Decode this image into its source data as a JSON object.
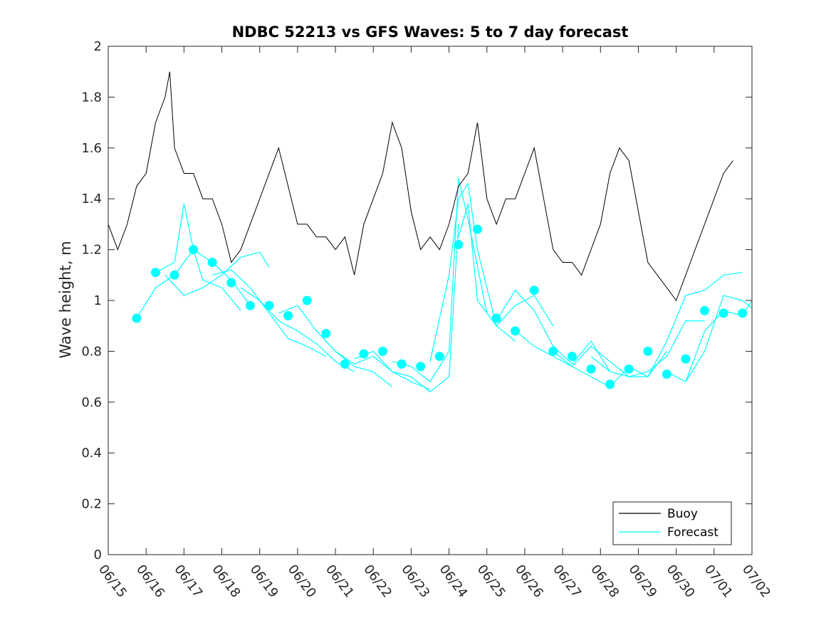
{
  "chart_data": {
    "type": "line",
    "title": "NDBC 52213 vs GFS Waves: 5 to 7 day forecast",
    "xlabel": "",
    "ylabel": "Wave height, m",
    "x_is_date": true,
    "xlim": [
      "06/15",
      "07/02"
    ],
    "ylim": [
      0,
      2
    ],
    "x_tick_labels": [
      "06/15",
      "06/16",
      "06/17",
      "06/18",
      "06/19",
      "06/20",
      "06/21",
      "06/22",
      "06/23",
      "06/24",
      "06/25",
      "06/26",
      "06/27",
      "06/28",
      "06/29",
      "06/30",
      "07/01",
      "07/02"
    ],
    "y_ticks": [
      0,
      0.2,
      0.4,
      0.6,
      0.8,
      1,
      1.2,
      1.4,
      1.6,
      1.8,
      2
    ],
    "y_tick_labels": [
      "0",
      "0.2",
      "0.4",
      "0.6",
      "0.8",
      "1",
      "1.2",
      "1.4",
      "1.6",
      "1.8",
      "2"
    ],
    "grid": false,
    "legend": {
      "position": "bottom-right",
      "entries": [
        "Buoy",
        "Forecast"
      ]
    },
    "colors": {
      "buoy": "#000000",
      "forecast": "#00ffff",
      "axis": "#262626"
    },
    "series": [
      {
        "name": "Buoy",
        "style": "line",
        "x": [
          "06/15 00:00",
          "06/15 06:00",
          "06/15 12:00",
          "06/15 18:00",
          "06/16 00:00",
          "06/16 06:00",
          "06/16 12:00",
          "06/16 15:00",
          "06/16 18:00",
          "06/17 00:00",
          "06/17 06:00",
          "06/17 12:00",
          "06/17 18:00",
          "06/18 00:00",
          "06/18 06:00",
          "06/18 12:00",
          "06/18 18:00",
          "06/19 00:00",
          "06/19 06:00",
          "06/19 12:00",
          "06/19 18:00",
          "06/20 00:00",
          "06/20 06:00",
          "06/20 12:00",
          "06/20 18:00",
          "06/21 00:00",
          "06/21 06:00",
          "06/21 12:00",
          "06/21 18:00",
          "06/22 00:00",
          "06/22 06:00",
          "06/22 12:00",
          "06/22 18:00",
          "06/23 00:00",
          "06/23 06:00",
          "06/23 12:00",
          "06/23 18:00",
          "06/24 00:00",
          "06/24 06:00",
          "06/24 12:00",
          "06/24 18:00",
          "06/25 00:00",
          "06/25 06:00",
          "06/25 12:00",
          "06/25 18:00",
          "06/26 00:00",
          "06/26 06:00",
          "06/26 12:00",
          "06/26 18:00",
          "06/27 00:00",
          "06/27 06:00",
          "06/27 12:00",
          "06/27 18:00",
          "06/28 00:00",
          "06/28 06:00",
          "06/28 12:00",
          "06/28 18:00",
          "06/29 00:00",
          "06/29 06:00",
          "06/29 12:00",
          "06/29 18:00",
          "06/30 00:00",
          "06/30 06:00",
          "06/30 12:00",
          "06/30 18:00",
          "07/01 00:00",
          "07/01 06:00",
          "07/01 12:00"
        ],
        "values": [
          1.3,
          1.2,
          1.3,
          1.45,
          1.5,
          1.7,
          1.8,
          1.9,
          1.6,
          1.5,
          1.5,
          1.4,
          1.4,
          1.3,
          1.15,
          1.2,
          1.3,
          1.4,
          1.5,
          1.6,
          1.45,
          1.3,
          1.3,
          1.25,
          1.25,
          1.2,
          1.25,
          1.1,
          1.3,
          1.4,
          1.5,
          1.7,
          1.6,
          1.35,
          1.2,
          1.25,
          1.2,
          1.3,
          1.45,
          1.5,
          1.7,
          1.4,
          1.3,
          1.4,
          1.4,
          1.5,
          1.6,
          1.4,
          1.2,
          1.15,
          1.15,
          1.1,
          1.2,
          1.3,
          1.5,
          1.6,
          1.55,
          1.35,
          1.15,
          1.1,
          1.05,
          1.0,
          1.1,
          1.2,
          1.3,
          1.4,
          1.5,
          1.55
        ]
      },
      {
        "name": "Forecast",
        "style": "markers",
        "x": [
          "06/15 18:00",
          "06/16 06:00",
          "06/16 18:00",
          "06/17 06:00",
          "06/17 18:00",
          "06/18 06:00",
          "06/18 18:00",
          "06/19 06:00",
          "06/19 18:00",
          "06/20 06:00",
          "06/20 18:00",
          "06/21 06:00",
          "06/21 18:00",
          "06/22 06:00",
          "06/22 18:00",
          "06/23 06:00",
          "06/23 18:00",
          "06/24 06:00",
          "06/24 18:00",
          "06/25 06:00",
          "06/25 18:00",
          "06/26 06:00",
          "06/26 18:00",
          "06/27 06:00",
          "06/27 18:00",
          "06/28 06:00",
          "06/28 18:00",
          "06/29 06:00",
          "06/29 18:00",
          "06/30 06:00",
          "06/30 18:00",
          "07/01 06:00",
          "07/01 18:00"
        ],
        "values": [
          0.93,
          1.11,
          1.1,
          1.2,
          1.15,
          1.07,
          0.98,
          0.98,
          0.94,
          1.0,
          0.87,
          0.75,
          0.79,
          0.8,
          0.75,
          0.74,
          0.78,
          1.22,
          1.28,
          0.93,
          0.88,
          1.04,
          0.8,
          0.78,
          0.73,
          0.67,
          0.73,
          0.8,
          0.71,
          0.77,
          0.96,
          0.95,
          0.95
        ]
      }
    ],
    "forecast_traces": [
      {
        "x": [
          "06/15 18:00",
          "06/16 06:00",
          "06/16 18:00",
          "06/17 06:00",
          "06/17 18:00",
          "06/18 06:00",
          "06/18 18:00"
        ],
        "values": [
          0.93,
          1.05,
          1.1,
          1.2,
          1.15,
          1.08,
          0.98
        ]
      },
      {
        "x": [
          "06/16 06:00",
          "06/16 18:00",
          "06/17 00:00",
          "06/17 06:00",
          "06/17 12:00",
          "06/18 00:00",
          "06/18 12:00"
        ],
        "values": [
          1.11,
          1.15,
          1.38,
          1.2,
          1.08,
          1.05,
          0.96
        ]
      },
      {
        "x": [
          "06/16 12:00",
          "06/17 00:00",
          "06/17 12:00",
          "06/18 00:00",
          "06/18 12:00",
          "06/19 00:00",
          "06/19 06:00"
        ],
        "values": [
          1.1,
          1.02,
          1.05,
          1.1,
          1.17,
          1.19,
          1.13
        ]
      },
      {
        "x": [
          "06/17 18:00",
          "06/18 06:00",
          "06/18 18:00",
          "06/19 06:00",
          "06/19 18:00",
          "06/20 06:00",
          "06/20 18:00"
        ],
        "values": [
          1.1,
          1.12,
          1.05,
          0.95,
          0.85,
          0.82,
          0.78
        ]
      },
      {
        "x": [
          "06/18 12:00",
          "06/19 00:00",
          "06/19 12:00",
          "06/20 00:00",
          "06/20 12:00",
          "06/21 00:00",
          "06/21 12:00"
        ],
        "values": [
          1.05,
          1.0,
          0.92,
          0.88,
          0.83,
          0.76,
          0.72
        ]
      },
      {
        "x": [
          "06/19 12:00",
          "06/20 00:00",
          "06/20 12:00",
          "06/21 00:00",
          "06/21 12:00",
          "06/22 00:00",
          "06/22 12:00"
        ],
        "values": [
          0.95,
          0.98,
          0.88,
          0.8,
          0.74,
          0.72,
          0.66
        ]
      },
      {
        "x": [
          "06/20 12:00",
          "06/21 00:00",
          "06/21 12:00",
          "06/22 00:00",
          "06/22 12:00",
          "06/23 00:00",
          "06/23 12:00"
        ],
        "values": [
          0.88,
          0.8,
          0.75,
          0.78,
          0.72,
          0.68,
          0.65
        ]
      },
      {
        "x": [
          "06/21 12:00",
          "06/22 00:00",
          "06/22 12:00",
          "06/23 00:00",
          "06/23 12:00",
          "06/24 00:00",
          "06/24 06:00"
        ],
        "values": [
          0.77,
          0.8,
          0.72,
          0.7,
          0.64,
          0.7,
          1.3
        ]
      },
      {
        "x": [
          "06/22 12:00",
          "06/23 00:00",
          "06/23 12:00",
          "06/24 00:00",
          "06/24 06:00",
          "06/24 12:00",
          "06/25 00:00"
        ],
        "values": [
          0.76,
          0.74,
          0.68,
          0.8,
          1.48,
          1.32,
          0.95
        ]
      },
      {
        "x": [
          "06/23 12:00",
          "06/24 00:00",
          "06/24 06:00",
          "06/24 12:00",
          "06/24 18:00",
          "06/25 06:00",
          "06/25 18:00"
        ],
        "values": [
          0.76,
          1.1,
          1.4,
          1.46,
          1.2,
          0.9,
          0.84
        ]
      },
      {
        "x": [
          "06/24 06:00",
          "06/24 12:00",
          "06/24 18:00",
          "06/25 06:00",
          "06/25 18:00",
          "06/26 06:00",
          "06/26 18:00"
        ],
        "values": [
          1.25,
          1.38,
          1.0,
          0.9,
          0.98,
          1.02,
          0.9
        ]
      },
      {
        "x": [
          "06/25 06:00",
          "06/25 18:00",
          "06/26 06:00",
          "06/26 18:00",
          "06/27 06:00",
          "06/27 18:00",
          "06/28 06:00"
        ],
        "values": [
          0.92,
          1.04,
          0.96,
          0.82,
          0.75,
          0.84,
          0.72
        ]
      },
      {
        "x": [
          "06/25 18:00",
          "06/26 06:00",
          "06/26 18:00",
          "06/27 06:00",
          "06/27 18:00",
          "06/28 06:00",
          "06/28 18:00"
        ],
        "values": [
          0.88,
          0.82,
          0.78,
          0.74,
          0.82,
          0.76,
          0.7
        ]
      },
      {
        "x": [
          "06/26 18:00",
          "06/27 06:00",
          "06/27 18:00",
          "06/28 06:00",
          "06/28 18:00",
          "06/29 06:00",
          "06/29 18:00"
        ],
        "values": [
          0.8,
          0.74,
          0.7,
          0.66,
          0.74,
          0.7,
          0.8
        ]
      },
      {
        "x": [
          "06/27 18:00",
          "06/28 06:00",
          "06/28 18:00",
          "06/29 06:00",
          "06/29 18:00",
          "06/30 06:00",
          "06/30 18:00"
        ],
        "values": [
          0.78,
          0.72,
          0.7,
          0.72,
          0.78,
          0.92,
          0.92
        ]
      },
      {
        "x": [
          "06/28 18:00",
          "06/29 06:00",
          "06/29 18:00",
          "06/30 06:00",
          "06/30 18:00",
          "07/01 06:00",
          "07/01 18:00"
        ],
        "values": [
          0.7,
          0.7,
          0.84,
          1.02,
          1.04,
          1.1,
          1.11
        ]
      },
      {
        "x": [
          "06/29 18:00",
          "06/30 06:00",
          "06/30 18:00",
          "07/01 06:00",
          "07/01 18:00",
          "07/02 00:00"
        ],
        "values": [
          0.72,
          0.68,
          0.8,
          1.02,
          1.0,
          0.97
        ]
      },
      {
        "x": [
          "06/30 06:00",
          "06/30 18:00",
          "07/01 06:00",
          "07/01 18:00",
          "07/02 00:00"
        ],
        "values": [
          0.68,
          0.88,
          0.96,
          0.94,
          1.0
        ]
      }
    ]
  }
}
